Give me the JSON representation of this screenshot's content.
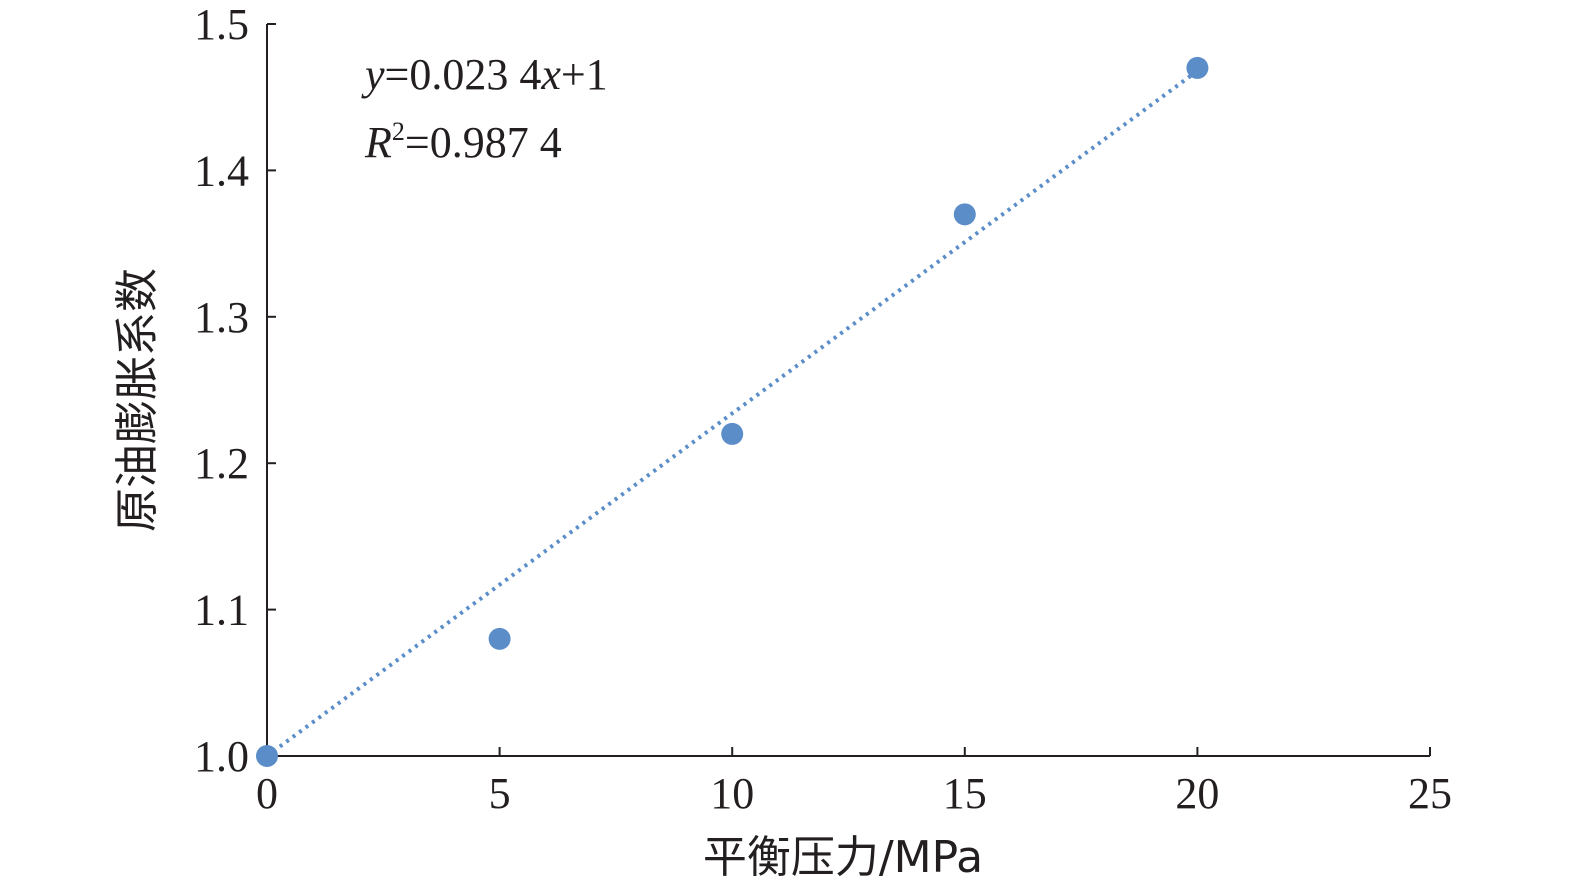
{
  "chart_data": {
    "type": "scatter",
    "xlabel": "平衡压力/MPa",
    "ylabel": "原油膨胀系数",
    "xlim": [
      0,
      25
    ],
    "ylim": [
      1.0,
      1.5
    ],
    "x_ticks": [
      "0",
      "5",
      "10",
      "15",
      "20",
      "25"
    ],
    "y_ticks": [
      "1.0",
      "1.1",
      "1.2",
      "1.3",
      "1.4",
      "1.5"
    ],
    "grid": false,
    "legend": "none",
    "series": [
      {
        "x": [
          0,
          5,
          10,
          15,
          20
        ],
        "y": [
          1.0,
          1.08,
          1.22,
          1.37,
          1.47
        ],
        "color": "#5b8dc9"
      }
    ],
    "trendline": {
      "slope": 0.0234,
      "intercept": 1,
      "x_range": [
        0,
        20
      ],
      "style": "dotted",
      "color": "#5b8dc9"
    },
    "equation": {
      "y_var": "y",
      "eq_mid": "=0.023 4",
      "x_var": "x",
      "eq_end": "+1",
      "r_var": "R",
      "r_sup": "2",
      "r_value": "=0.987 4"
    }
  }
}
